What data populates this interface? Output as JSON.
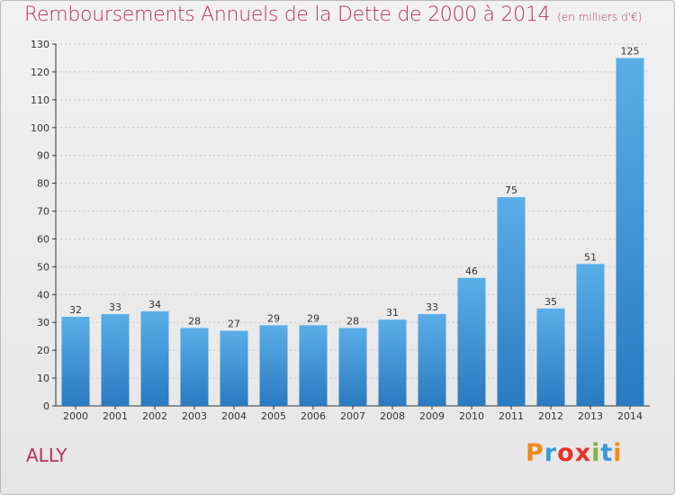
{
  "title": "Remboursements Annuels de la Dette de 2000 à 2014",
  "unit": "(en milliers d'€)",
  "commune": "ALLY",
  "logo": {
    "letters": [
      "P",
      "r",
      "o",
      "x",
      "i",
      "t",
      "i"
    ],
    "colors": [
      "#f08a1c",
      "#3a9ad9",
      "#e8312a",
      "#e8312a",
      "#7cb342",
      "#3a9ad9",
      "#f08a1c"
    ]
  },
  "colors": {
    "title": "#b5325e",
    "bar_top": "#5aaee8",
    "bar_bottom": "#2a7ac0",
    "axis": "#333333"
  },
  "chart_data": {
    "type": "bar",
    "categories": [
      "2000",
      "2001",
      "2002",
      "2003",
      "2004",
      "2005",
      "2006",
      "2007",
      "2008",
      "2009",
      "2010",
      "2011",
      "2012",
      "2013",
      "2014"
    ],
    "values": [
      32,
      33,
      34,
      28,
      27,
      29,
      29,
      28,
      31,
      33,
      46,
      75,
      35,
      51,
      125
    ],
    "data_labels": [
      "32",
      "33",
      "34",
      "28",
      "27",
      "29",
      "29",
      "28",
      "31",
      "33",
      "46",
      "75",
      "35",
      "51",
      "125"
    ],
    "y_ticks": [
      0,
      10,
      20,
      30,
      40,
      50,
      60,
      70,
      80,
      90,
      100,
      110,
      120,
      130
    ],
    "ylim": [
      0,
      130
    ],
    "grid": true,
    "grid_axis": "y",
    "legend": "none"
  }
}
